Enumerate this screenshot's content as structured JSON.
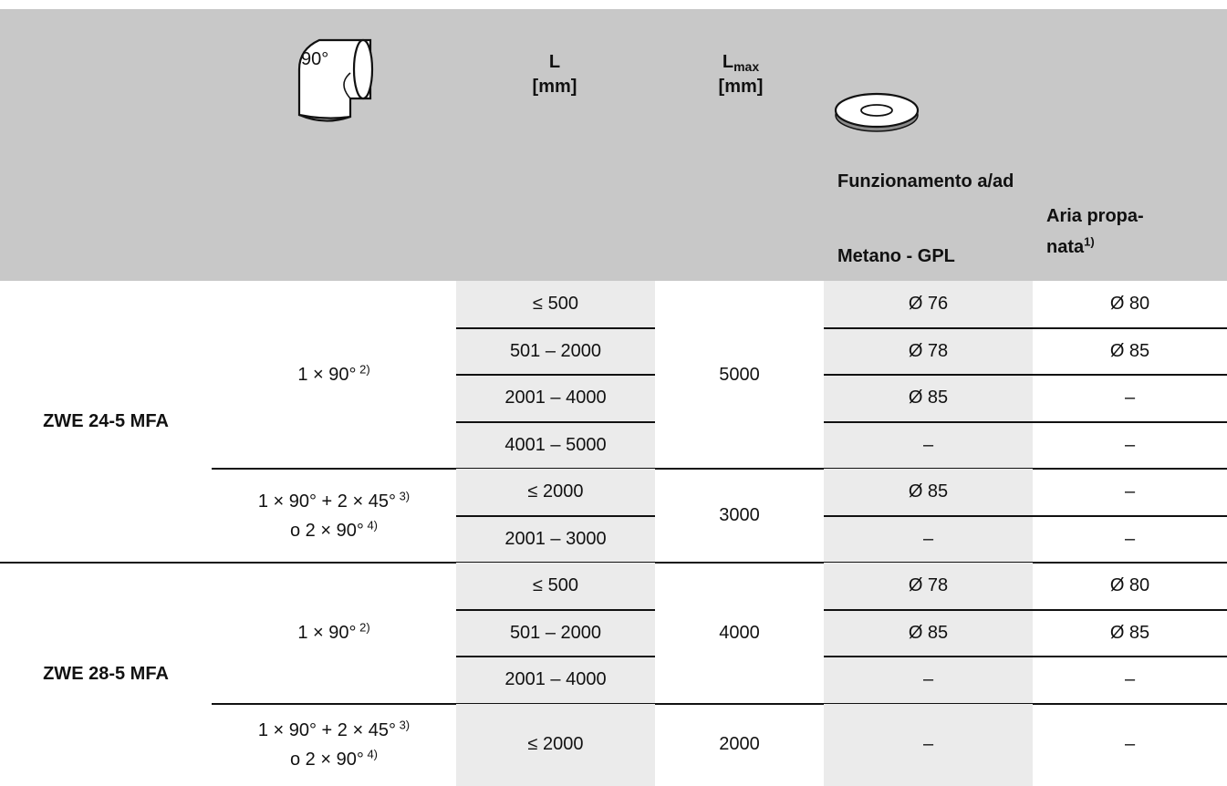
{
  "header": {
    "elbow_icon_label": "90°",
    "col_l": "L",
    "col_l_unit": "[mm]",
    "col_lmax": "L",
    "col_lmax_sub": "max",
    "col_lmax_unit": "[mm]",
    "funz": "Funzionamento a/ad",
    "metano": "Metano - GPL",
    "aria_line1": "Aria propa-",
    "aria_line2": "nata",
    "aria_sup": "1)"
  },
  "models": [
    {
      "name": "ZWE 24-5 MFA",
      "groups": [
        {
          "config": "1 × 90°",
          "config_sup": "2)",
          "config2": "",
          "config2_sup": "",
          "lmax": "5000",
          "rows": [
            {
              "l": "≤ 500",
              "metano": "Ø 76",
              "aria": "Ø 80"
            },
            {
              "l": "501 – 2000",
              "metano": "Ø 78",
              "aria": "Ø 85"
            },
            {
              "l": "2001 – 4000",
              "metano": "Ø 85",
              "aria": "–"
            },
            {
              "l": "4001 – 5000",
              "metano": "–",
              "aria": "–"
            }
          ]
        },
        {
          "config": "1 × 90° + 2 × 45°",
          "config_sup": "3)",
          "config2": "o 2 × 90°",
          "config2_sup": "4)",
          "lmax": "3000",
          "rows": [
            {
              "l": "≤ 2000",
              "metano": "Ø 85",
              "aria": "–"
            },
            {
              "l": "2001 – 3000",
              "metano": "–",
              "aria": "–"
            }
          ]
        }
      ]
    },
    {
      "name": "ZWE 28-5 MFA",
      "groups": [
        {
          "config": "1 × 90°",
          "config_sup": "2)",
          "config2": "",
          "config2_sup": "",
          "lmax": "4000",
          "rows": [
            {
              "l": "≤ 500",
              "metano": "Ø 78",
              "aria": "Ø 80"
            },
            {
              "l": "501 – 2000",
              "metano": "Ø 85",
              "aria": "Ø 85"
            },
            {
              "l": "2001 – 4000",
              "metano": "–",
              "aria": "–"
            }
          ]
        },
        {
          "config": "1 × 90° + 2 × 45°",
          "config_sup": "3)",
          "config2": "o 2 × 90°",
          "config2_sup": "4)",
          "lmax": "2000",
          "rows": [
            {
              "l": "≤ 2000",
              "metano": "–",
              "aria": "–"
            }
          ]
        }
      ]
    }
  ]
}
